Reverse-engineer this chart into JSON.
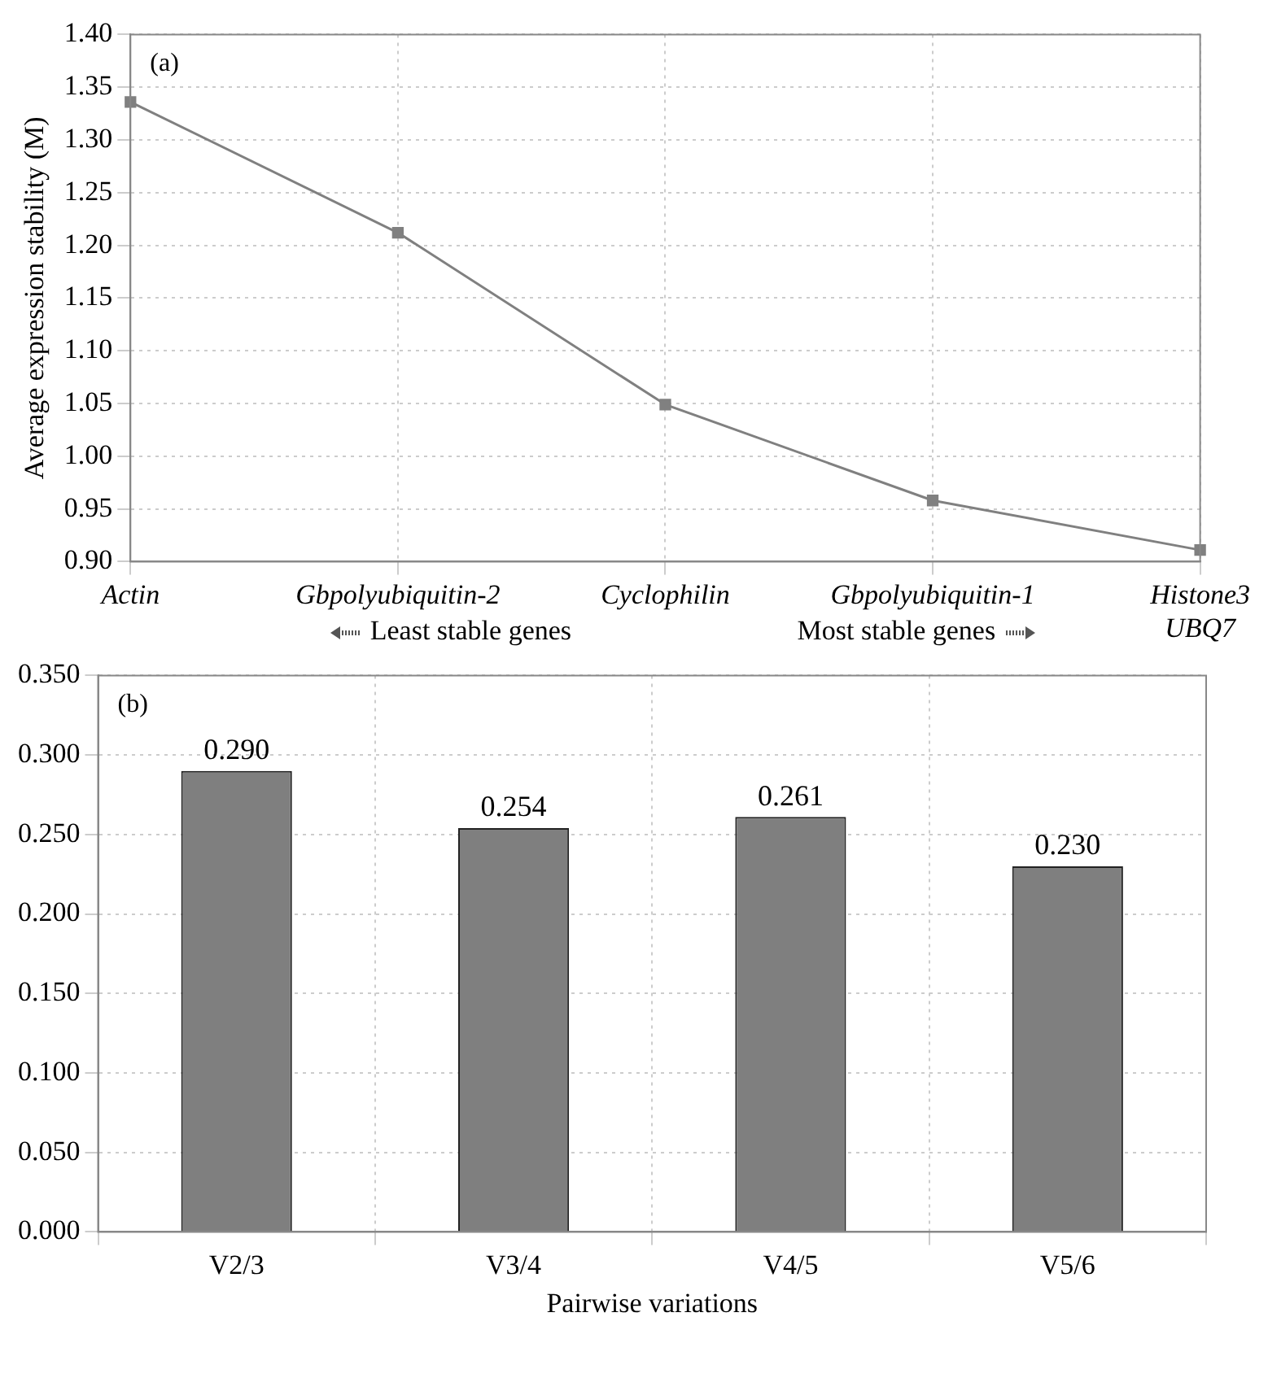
{
  "chart_data": [
    {
      "type": "line",
      "ylabel": "Average expression stability (M)",
      "categories": [
        "Actin",
        "Gbpolyubiquitin-2",
        "Cyclophilin",
        "Gbpolyubiquitin-1",
        "Histone3\nUBQ7"
      ],
      "values": [
        1.336,
        1.212,
        1.049,
        0.958,
        0.911
      ],
      "color": "#808080",
      "marker": "square",
      "line_style": "solid",
      "ylim": [
        0.9,
        1.4
      ],
      "yticks": [
        {
          "value": 0.9,
          "label": "0.90"
        },
        {
          "value": 0.95,
          "label": "0.95"
        },
        {
          "value": 1.0,
          "label": "1.00"
        },
        {
          "value": 1.05,
          "label": "1.05"
        },
        {
          "value": 1.1,
          "label": "1.10"
        },
        {
          "value": 1.15,
          "label": "1.15"
        },
        {
          "value": 1.2,
          "label": "1.20"
        },
        {
          "value": 1.25,
          "label": "1.25"
        },
        {
          "value": 1.3,
          "label": "1.30"
        },
        {
          "value": 1.35,
          "label": "1.35"
        },
        {
          "value": 1.4,
          "label": "1.40"
        }
      ],
      "grid": true,
      "annotations": [
        "(a)",
        "Least stable genes",
        "Most stable genes"
      ]
    },
    {
      "type": "bar",
      "xlabel": "Pairwise variations",
      "categories": [
        "V2/3",
        "V3/4",
        "V4/5",
        "V5/6"
      ],
      "values": [
        0.29,
        0.254,
        0.261,
        0.23
      ],
      "value_labels": [
        "0.290",
        "0.254",
        "0.261",
        "0.230"
      ],
      "color": "#7f7f7f",
      "ylim": [
        0,
        0.35
      ],
      "yticks": [
        {
          "value": 0,
          "label": "0.000"
        },
        {
          "value": 0.05,
          "label": "0.050"
        },
        {
          "value": 0.1,
          "label": "0.100"
        },
        {
          "value": 0.15,
          "label": "0.150"
        },
        {
          "value": 0.2,
          "label": "0.200"
        },
        {
          "value": 0.25,
          "label": "0.250"
        },
        {
          "value": 0.3,
          "label": "0.300"
        },
        {
          "value": 0.35,
          "label": "0.350"
        }
      ],
      "grid": true,
      "annotations": [
        "(b)"
      ]
    }
  ]
}
